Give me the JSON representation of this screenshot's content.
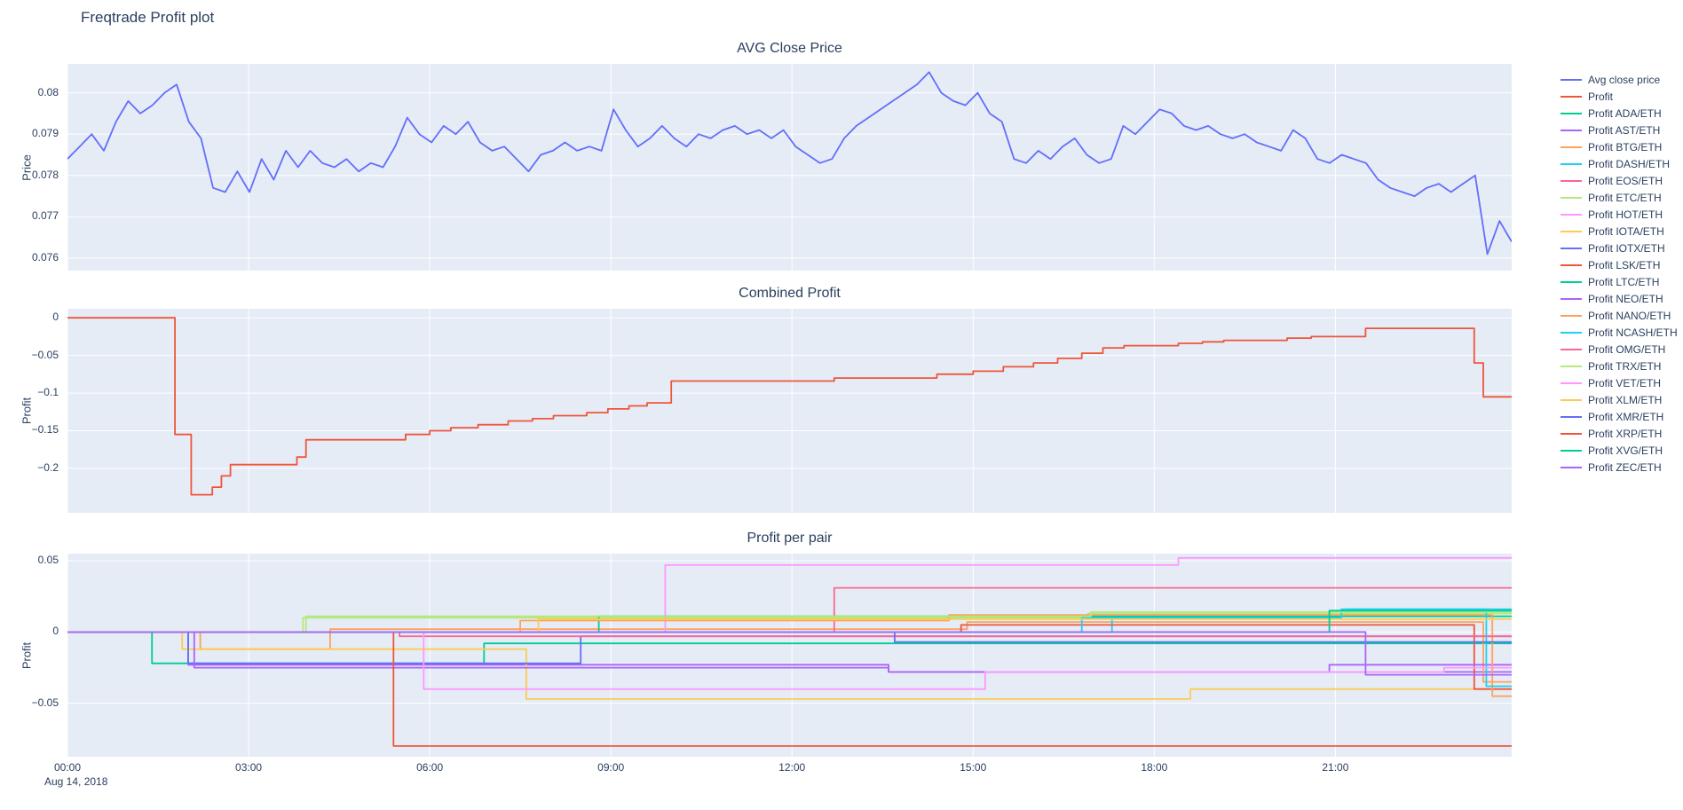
{
  "page": {
    "title": "Freqtrade Profit plot"
  },
  "theme": {
    "plot_bg": "#E5ECF6",
    "grid": "#FFFFFF",
    "text": "#2a3f5f"
  },
  "xaxis": {
    "range": [
      0,
      23.92
    ],
    "tick_values": [
      0,
      3,
      6,
      9,
      12,
      15,
      18,
      21
    ],
    "tick_labels": [
      "00:00",
      "03:00",
      "06:00",
      "09:00",
      "12:00",
      "15:00",
      "18:00",
      "21:00"
    ],
    "date_label": "Aug 14, 2018"
  },
  "chart_data": [
    {
      "type": "line",
      "title": "AVG Close Price",
      "ylabel": "Price",
      "ylim": [
        0.0757,
        0.0807
      ],
      "yticks": [
        0.076,
        0.077,
        0.078,
        0.079,
        0.08
      ],
      "ytick_labels": [
        "0.076",
        "0.077",
        "0.078",
        "0.079",
        "0.08"
      ],
      "series": [
        {
          "name": "Avg close price",
          "color": "#636efa",
          "x0": 0,
          "dx": 0.201,
          "y": [
            0.0784,
            0.0787,
            0.079,
            0.0786,
            0.0793,
            0.0798,
            0.0795,
            0.0797,
            0.08,
            0.0802,
            0.0793,
            0.0789,
            0.0777,
            0.0776,
            0.0781,
            0.0776,
            0.0784,
            0.0779,
            0.0786,
            0.0782,
            0.0786,
            0.0783,
            0.0782,
            0.0784,
            0.0781,
            0.0783,
            0.0782,
            0.0787,
            0.0794,
            0.079,
            0.0788,
            0.0792,
            0.079,
            0.0793,
            0.0788,
            0.0786,
            0.0787,
            0.0784,
            0.0781,
            0.0785,
            0.0786,
            0.0788,
            0.0786,
            0.0787,
            0.0786,
            0.0796,
            0.0791,
            0.0787,
            0.0789,
            0.0792,
            0.0789,
            0.0787,
            0.079,
            0.0789,
            0.0791,
            0.0792,
            0.079,
            0.0791,
            0.0789,
            0.0791,
            0.0787,
            0.0785,
            0.0783,
            0.0784,
            0.0789,
            0.0792,
            0.0794,
            0.0796,
            0.0798,
            0.08,
            0.0802,
            0.0805,
            0.08,
            0.0798,
            0.0797,
            0.08,
            0.0795,
            0.0793,
            0.0784,
            0.0783,
            0.0786,
            0.0784,
            0.0787,
            0.0789,
            0.0785,
            0.0783,
            0.0784,
            0.0792,
            0.079,
            0.0793,
            0.0796,
            0.0795,
            0.0792,
            0.0791,
            0.0792,
            0.079,
            0.0789,
            0.079,
            0.0788,
            0.0787,
            0.0786,
            0.0791,
            0.0789,
            0.0784,
            0.0783,
            0.0785,
            0.0784,
            0.0783,
            0.0779,
            0.0777,
            0.0776,
            0.0775,
            0.0777,
            0.0778,
            0.0776,
            0.0778,
            0.078,
            0.0761,
            0.0769,
            0.0764
          ]
        }
      ]
    },
    {
      "type": "line",
      "title": "Combined Profit",
      "ylabel": "Profit",
      "ylim": [
        -0.259,
        0.012
      ],
      "yticks": [
        0,
        -0.05,
        -0.1,
        -0.15,
        -0.2
      ],
      "ytick_labels": [
        "0",
        "−0.05",
        "−0.1",
        "−0.15",
        "−0.2"
      ],
      "series": [
        {
          "name": "Profit",
          "color": "#EF553B",
          "step": true,
          "x": [
            0,
            1.78,
            2.05,
            2.4,
            2.55,
            2.7,
            3.8,
            3.95,
            5.6,
            6.0,
            6.35,
            6.8,
            7.3,
            7.7,
            8.05,
            8.6,
            8.95,
            9.3,
            9.6,
            10.0,
            12.7,
            14.4,
            15.0,
            15.5,
            16.0,
            16.4,
            16.8,
            17.15,
            17.5,
            18.4,
            18.8,
            19.15,
            20.2,
            20.6,
            21.5,
            23.3,
            23.45,
            23.92
          ],
          "y": [
            0,
            -0.155,
            -0.235,
            -0.225,
            -0.21,
            -0.195,
            -0.185,
            -0.162,
            -0.155,
            -0.15,
            -0.146,
            -0.142,
            -0.137,
            -0.134,
            -0.13,
            -0.126,
            -0.121,
            -0.117,
            -0.113,
            -0.084,
            -0.08,
            -0.075,
            -0.071,
            -0.065,
            -0.06,
            -0.054,
            -0.047,
            -0.04,
            -0.037,
            -0.034,
            -0.032,
            -0.03,
            -0.027,
            -0.025,
            -0.014,
            -0.06,
            -0.105,
            -0.105
          ]
        }
      ]
    },
    {
      "type": "line",
      "title": "Profit per pair",
      "ylabel": "Profit",
      "ylim": [
        -0.0875,
        0.055
      ],
      "yticks": [
        0.05,
        0,
        -0.05
      ],
      "ytick_labels": [
        "0.05",
        "0",
        "−0.05"
      ],
      "series": [
        {
          "name": "Profit ADA/ETH",
          "color": "#00cc96",
          "step": true,
          "x": [
            0,
            1.4,
            6.9,
            23.92
          ],
          "y": [
            0,
            -0.022,
            -0.008,
            -0.008
          ]
        },
        {
          "name": "Profit AST/ETH",
          "color": "#ab63fa",
          "step": true,
          "x": [
            0,
            2.0,
            13.6,
            23.92
          ],
          "y": [
            0,
            -0.023,
            -0.028,
            -0.028
          ]
        },
        {
          "name": "Profit BTG/ETH",
          "color": "#FFA15A",
          "step": true,
          "x": [
            0,
            2.2,
            4.35,
            14.9,
            23.45,
            23.92
          ],
          "y": [
            0,
            -0.012,
            0.002,
            0.007,
            -0.035,
            -0.035
          ]
        },
        {
          "name": "Profit DASH/ETH",
          "color": "#19d3f3",
          "step": true,
          "x": [
            0,
            17.3,
            21.2,
            23.92
          ],
          "y": [
            0,
            0.012,
            0.016,
            0.016
          ]
        },
        {
          "name": "Profit EOS/ETH",
          "color": "#FF6692",
          "step": true,
          "x": [
            0,
            12.7,
            23.92
          ],
          "y": [
            0,
            0.031,
            0.031
          ]
        },
        {
          "name": "Profit ETC/ETH",
          "color": "#B6E880",
          "step": true,
          "x": [
            0,
            3.9,
            16.9,
            23.92
          ],
          "y": [
            0,
            0.01,
            0.013,
            0.013
          ]
        },
        {
          "name": "Profit HOT/ETH",
          "color": "#FF97FF",
          "step": true,
          "x": [
            0,
            9.9,
            18.4,
            23.92
          ],
          "y": [
            0,
            0.047,
            0.052,
            0.052
          ]
        },
        {
          "name": "Profit IOTA/ETH",
          "color": "#FECB52",
          "step": true,
          "x": [
            0,
            1.9,
            7.6,
            18.6,
            23.92
          ],
          "y": [
            0,
            -0.012,
            -0.047,
            -0.04,
            -0.04
          ]
        },
        {
          "name": "Profit IOTX/ETH",
          "color": "#636efa",
          "step": true,
          "x": [
            0,
            2.0,
            8.5,
            23.92
          ],
          "y": [
            0,
            -0.022,
            -0.003,
            -0.003
          ]
        },
        {
          "name": "Profit LSK/ETH",
          "color": "#EF553B",
          "step": true,
          "x": [
            0,
            14.8,
            23.3,
            23.92
          ],
          "y": [
            0,
            0.005,
            -0.04,
            -0.04
          ]
        },
        {
          "name": "Profit LTC/ETH",
          "color": "#00cc96",
          "step": true,
          "x": [
            0,
            8.8,
            23.92
          ],
          "y": [
            0,
            0.011,
            0.011
          ]
        },
        {
          "name": "Profit NEO/ETH",
          "color": "#ab63fa",
          "step": true,
          "x": [
            0,
            2.1,
            13.6,
            20.9,
            23.92
          ],
          "y": [
            0,
            -0.025,
            -0.028,
            -0.023,
            -0.023
          ]
        },
        {
          "name": "Profit NANO/ETH",
          "color": "#FFA15A",
          "step": true,
          "x": [
            0,
            7.5,
            14.6,
            23.6,
            23.92
          ],
          "y": [
            0,
            0.008,
            0.012,
            -0.045,
            -0.045
          ]
        },
        {
          "name": "Profit NCASH/ETH",
          "color": "#19d3f3",
          "step": true,
          "x": [
            0,
            16.8,
            21.1,
            23.5,
            23.92
          ],
          "y": [
            0,
            0.01,
            0.016,
            -0.038,
            -0.038
          ]
        },
        {
          "name": "Profit OMG/ETH",
          "color": "#FF6692",
          "step": true,
          "x": [
            0,
            5.5,
            23.92
          ],
          "y": [
            0,
            -0.003,
            -0.003
          ]
        },
        {
          "name": "Profit TRX/ETH",
          "color": "#B6E880",
          "step": true,
          "x": [
            0,
            3.95,
            16.95,
            23.92
          ],
          "y": [
            0,
            0.011,
            0.014,
            0.014
          ]
        },
        {
          "name": "Profit VET/ETH",
          "color": "#FF97FF",
          "step": true,
          "x": [
            0,
            5.9,
            15.2,
            22.8,
            23.92
          ],
          "y": [
            0,
            -0.04,
            -0.028,
            -0.025,
            -0.025
          ]
        },
        {
          "name": "Profit XLM/ETH",
          "color": "#FECB52",
          "step": true,
          "x": [
            0,
            7.8,
            23.92
          ],
          "y": [
            0,
            0.009,
            0.009
          ]
        },
        {
          "name": "Profit XMR/ETH",
          "color": "#636efa",
          "step": true,
          "x": [
            0,
            13.7,
            23.92
          ],
          "y": [
            0,
            -0.007,
            -0.007
          ]
        },
        {
          "name": "Profit XRP/ETH",
          "color": "#EF553B",
          "step": true,
          "x": [
            0,
            5.4,
            23.92
          ],
          "y": [
            0,
            -0.08,
            -0.08
          ]
        },
        {
          "name": "Profit XVG/ETH",
          "color": "#00cc96",
          "step": true,
          "x": [
            0,
            20.9,
            23.92
          ],
          "y": [
            0,
            0.015,
            0.015
          ]
        },
        {
          "name": "Profit ZEC/ETH",
          "color": "#ab63fa",
          "step": true,
          "x": [
            0,
            21.5,
            23.92
          ],
          "y": [
            0,
            -0.03,
            -0.03
          ]
        }
      ]
    }
  ],
  "legend": {
    "items": [
      {
        "label": "Avg close price",
        "color": "#636efa"
      },
      {
        "label": "Profit",
        "color": "#EF553B"
      },
      {
        "label": "Profit ADA/ETH",
        "color": "#00cc96"
      },
      {
        "label": "Profit AST/ETH",
        "color": "#ab63fa"
      },
      {
        "label": "Profit BTG/ETH",
        "color": "#FFA15A"
      },
      {
        "label": "Profit DASH/ETH",
        "color": "#19d3f3"
      },
      {
        "label": "Profit EOS/ETH",
        "color": "#FF6692"
      },
      {
        "label": "Profit ETC/ETH",
        "color": "#B6E880"
      },
      {
        "label": "Profit HOT/ETH",
        "color": "#FF97FF"
      },
      {
        "label": "Profit IOTA/ETH",
        "color": "#FECB52"
      },
      {
        "label": "Profit IOTX/ETH",
        "color": "#636efa"
      },
      {
        "label": "Profit LSK/ETH",
        "color": "#EF553B"
      },
      {
        "label": "Profit LTC/ETH",
        "color": "#00cc96"
      },
      {
        "label": "Profit NEO/ETH",
        "color": "#ab63fa"
      },
      {
        "label": "Profit NANO/ETH",
        "color": "#FFA15A"
      },
      {
        "label": "Profit NCASH/ETH",
        "color": "#19d3f3"
      },
      {
        "label": "Profit OMG/ETH",
        "color": "#FF6692"
      },
      {
        "label": "Profit TRX/ETH",
        "color": "#B6E880"
      },
      {
        "label": "Profit VET/ETH",
        "color": "#FF97FF"
      },
      {
        "label": "Profit XLM/ETH",
        "color": "#FECB52"
      },
      {
        "label": "Profit XMR/ETH",
        "color": "#636efa"
      },
      {
        "label": "Profit XRP/ETH",
        "color": "#EF553B"
      },
      {
        "label": "Profit XVG/ETH",
        "color": "#00cc96"
      },
      {
        "label": "Profit ZEC/ETH",
        "color": "#ab63fa"
      }
    ]
  }
}
